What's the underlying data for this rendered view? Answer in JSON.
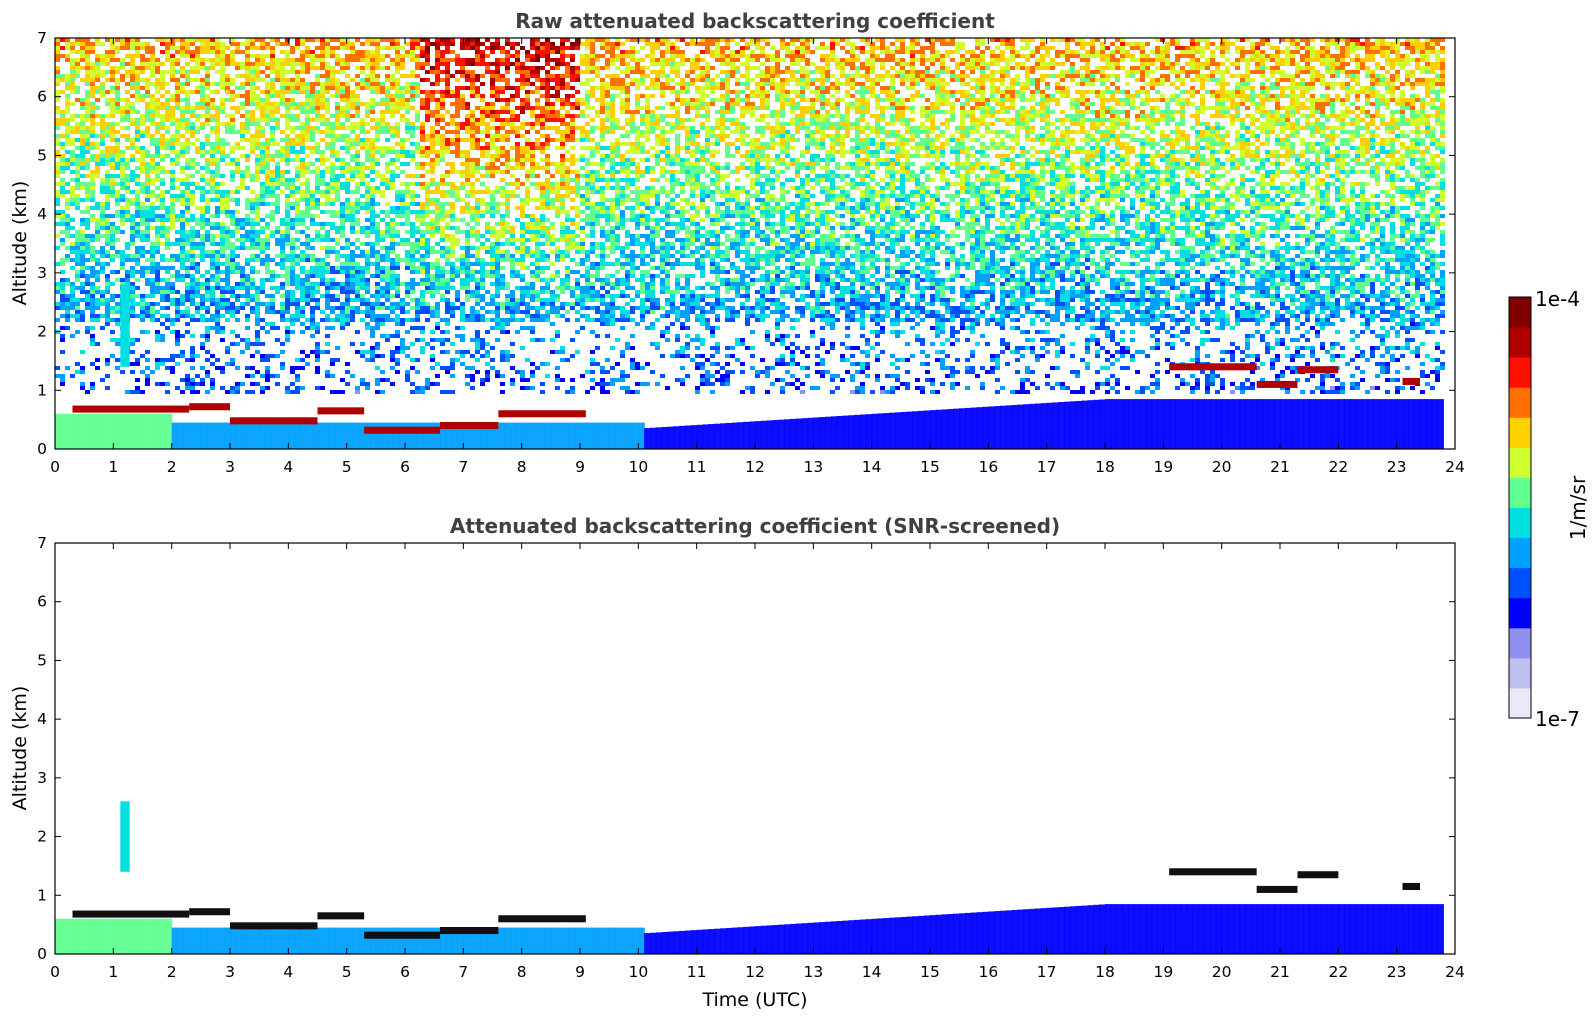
{
  "chart_data": [
    {
      "type": "heatmap",
      "title": "Raw attenuated backscattering coefficient",
      "xlabel": "",
      "ylabel": "Altitude (km)",
      "xlim": [
        0,
        24
      ],
      "ylim": [
        0,
        7
      ],
      "xticks": [
        "0",
        "1",
        "2",
        "3",
        "4",
        "5",
        "6",
        "7",
        "8",
        "9",
        "10",
        "11",
        "12",
        "13",
        "14",
        "15",
        "16",
        "17",
        "18",
        "19",
        "20",
        "21",
        "22",
        "23",
        "24"
      ],
      "yticks": [
        "0",
        "1",
        "2",
        "3",
        "4",
        "5",
        "6",
        "7"
      ],
      "data_end_time": 23.8,
      "noise_above_km": 1.0,
      "cloud_layers": [
        {
          "start": 0.3,
          "end": 2.3,
          "alt": 0.68
        },
        {
          "start": 2.3,
          "end": 3.0,
          "alt": 0.72
        },
        {
          "start": 3.0,
          "end": 4.5,
          "alt": 0.48
        },
        {
          "start": 4.5,
          "end": 5.3,
          "alt": 0.65
        },
        {
          "start": 5.3,
          "end": 6.6,
          "alt": 0.32
        },
        {
          "start": 6.6,
          "end": 7.6,
          "alt": 0.4
        },
        {
          "start": 7.6,
          "end": 9.1,
          "alt": 0.6
        },
        {
          "start": 19.1,
          "end": 20.6,
          "alt": 1.4
        },
        {
          "start": 20.6,
          "end": 21.3,
          "alt": 1.1
        },
        {
          "start": 21.3,
          "end": 22.0,
          "alt": 1.35
        },
        {
          "start": 23.1,
          "end": 23.4,
          "alt": 1.15
        }
      ],
      "aerosol_plume": {
        "time": 1.2,
        "bottom": 1.4,
        "top": 2.8
      }
    },
    {
      "type": "heatmap",
      "title": "Attenuated backscattering coefficient (SNR-screened)",
      "xlabel": "Time (UTC)",
      "ylabel": "Altitude (km)",
      "xlim": [
        0,
        24
      ],
      "ylim": [
        0,
        7
      ],
      "xticks": [
        "0",
        "1",
        "2",
        "3",
        "4",
        "5",
        "6",
        "7",
        "8",
        "9",
        "10",
        "11",
        "12",
        "13",
        "14",
        "15",
        "16",
        "17",
        "18",
        "19",
        "20",
        "21",
        "22",
        "23",
        "24"
      ],
      "yticks": [
        "0",
        "1",
        "2",
        "3",
        "4",
        "5",
        "6",
        "7"
      ],
      "data_end_time": 23.8,
      "cloud_layers": [
        {
          "start": 0.3,
          "end": 2.3,
          "alt": 0.68
        },
        {
          "start": 2.3,
          "end": 3.0,
          "alt": 0.72
        },
        {
          "start": 3.0,
          "end": 4.5,
          "alt": 0.48
        },
        {
          "start": 4.5,
          "end": 5.3,
          "alt": 0.65
        },
        {
          "start": 5.3,
          "end": 6.6,
          "alt": 0.32
        },
        {
          "start": 6.6,
          "end": 7.6,
          "alt": 0.4
        },
        {
          "start": 7.6,
          "end": 9.1,
          "alt": 0.6
        },
        {
          "start": 19.1,
          "end": 20.6,
          "alt": 1.4
        },
        {
          "start": 20.6,
          "end": 21.3,
          "alt": 1.1
        },
        {
          "start": 21.3,
          "end": 22.0,
          "alt": 1.35
        },
        {
          "start": 23.1,
          "end": 23.4,
          "alt": 1.15
        }
      ],
      "aerosol_plume": {
        "time": 1.2,
        "bottom": 1.4,
        "top": 2.6
      }
    }
  ],
  "colorbar": {
    "max_label": "1e-4",
    "min_label": "1e-7",
    "unit_label": "1/m/sr",
    "colors": [
      "#e8e8f8",
      "#c0c0f0",
      "#9090f0",
      "#0000ff",
      "#0050ff",
      "#00a0ff",
      "#00e0e0",
      "#60ff90",
      "#d0ff30",
      "#ffd000",
      "#ff7000",
      "#ff1000",
      "#b00000",
      "#800000"
    ]
  }
}
